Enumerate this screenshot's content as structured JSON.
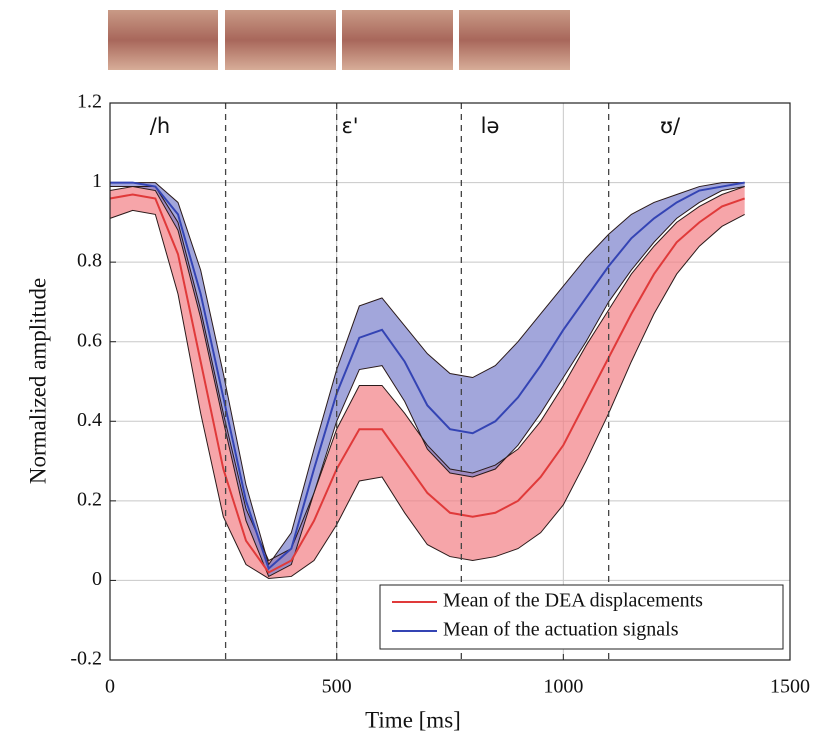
{
  "chart_data": {
    "type": "band-line",
    "xlabel": "Time [ms]",
    "ylabel": "Normalized amplitude",
    "x": [
      0,
      50,
      100,
      150,
      200,
      250,
      300,
      350,
      400,
      450,
      500,
      550,
      600,
      650,
      700,
      750,
      800,
      850,
      900,
      950,
      1000,
      1050,
      1100,
      1150,
      1200,
      1250,
      1300,
      1350,
      1400
    ],
    "series": [
      {
        "name": "Mean of the DEA displacements",
        "color": "#e03a3a",
        "values": [
          0.96,
          0.97,
          0.96,
          0.82,
          0.55,
          0.28,
          0.1,
          0.02,
          0.05,
          0.15,
          0.28,
          0.38,
          0.38,
          0.3,
          0.22,
          0.17,
          0.16,
          0.17,
          0.2,
          0.26,
          0.34,
          0.45,
          0.56,
          0.67,
          0.77,
          0.85,
          0.9,
          0.94,
          0.96
        ],
        "band_color": "#f27f85",
        "upper": [
          0.98,
          0.99,
          0.99,
          0.9,
          0.68,
          0.42,
          0.18,
          0.05,
          0.08,
          0.22,
          0.38,
          0.49,
          0.49,
          0.42,
          0.34,
          0.28,
          0.27,
          0.29,
          0.33,
          0.4,
          0.49,
          0.59,
          0.68,
          0.77,
          0.84,
          0.9,
          0.94,
          0.97,
          0.99
        ],
        "lower": [
          0.91,
          0.93,
          0.92,
          0.72,
          0.42,
          0.16,
          0.04,
          0.005,
          0.01,
          0.05,
          0.14,
          0.25,
          0.26,
          0.17,
          0.09,
          0.06,
          0.05,
          0.06,
          0.08,
          0.12,
          0.19,
          0.3,
          0.42,
          0.55,
          0.67,
          0.77,
          0.84,
          0.89,
          0.92
        ]
      },
      {
        "name": "Mean of the actuation signals",
        "color": "#3444b4",
        "values": [
          1.0,
          1.0,
          0.99,
          0.92,
          0.72,
          0.46,
          0.2,
          0.03,
          0.08,
          0.28,
          0.47,
          0.61,
          0.63,
          0.55,
          0.44,
          0.38,
          0.37,
          0.4,
          0.46,
          0.54,
          0.63,
          0.71,
          0.79,
          0.86,
          0.91,
          0.95,
          0.98,
          0.99,
          1.0
        ],
        "band_color": "#7a80cc",
        "upper": [
          1.0,
          1.0,
          1.0,
          0.95,
          0.78,
          0.52,
          0.24,
          0.04,
          0.12,
          0.33,
          0.53,
          0.69,
          0.71,
          0.64,
          0.57,
          0.52,
          0.51,
          0.54,
          0.6,
          0.67,
          0.74,
          0.81,
          0.87,
          0.92,
          0.95,
          0.97,
          0.99,
          1.0,
          1.0
        ],
        "lower": [
          0.99,
          0.99,
          0.98,
          0.88,
          0.66,
          0.4,
          0.15,
          0.01,
          0.04,
          0.22,
          0.4,
          0.53,
          0.54,
          0.45,
          0.33,
          0.27,
          0.26,
          0.28,
          0.34,
          0.42,
          0.51,
          0.6,
          0.7,
          0.78,
          0.85,
          0.91,
          0.95,
          0.98,
          0.99
        ]
      }
    ],
    "markers": [
      255,
      500,
      775,
      1100
    ],
    "phonemes": [
      "/h",
      "ɛ'",
      "lə",
      "ʊ/"
    ],
    "xlim": [
      0,
      1500
    ],
    "xticks": [
      0,
      500,
      1000,
      1500
    ],
    "ylim": [
      -0.2,
      1.2
    ],
    "yticks": [
      -0.2,
      0,
      0.2,
      0.4,
      0.6,
      0.8,
      1,
      1.2
    ],
    "grid": true,
    "legend": "lower right"
  }
}
